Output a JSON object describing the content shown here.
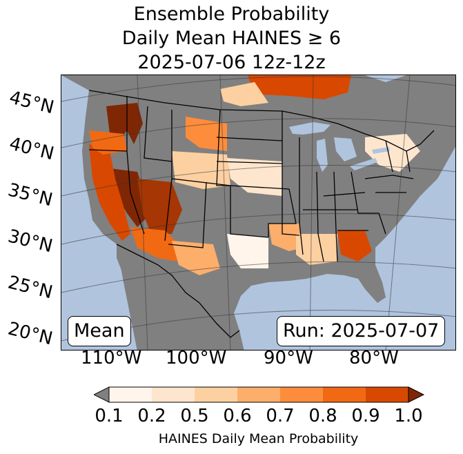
{
  "title": {
    "line1": "Ensemble Probability",
    "line2": "Daily Mean HAINES ≥ 6",
    "line3": "2025-07-06 12z-12z"
  },
  "map": {
    "ocean_color": "#b0c4de",
    "land_color": "#808080",
    "lat_labels": [
      "45°N",
      "40°N",
      "35°N",
      "30°N",
      "25°N",
      "20°N"
    ],
    "lon_labels": [
      "110°W",
      "100°W",
      "90°W",
      "80°W"
    ],
    "box_left": "Mean",
    "box_right": "Run: 2025-07-07"
  },
  "colorbar": {
    "label": "HAINES Daily Mean Probability",
    "ticks": [
      "0.1",
      "0.2",
      "0.5",
      "0.6",
      "0.7",
      "0.8",
      "0.9",
      "1.0"
    ],
    "under_color": "#808080",
    "over_color": "#7f2704",
    "colors": [
      "#fff5eb",
      "#fee6ce",
      "#fdd0a2",
      "#fdae6b",
      "#fd8d3c",
      "#f16913",
      "#d94801"
    ]
  }
}
